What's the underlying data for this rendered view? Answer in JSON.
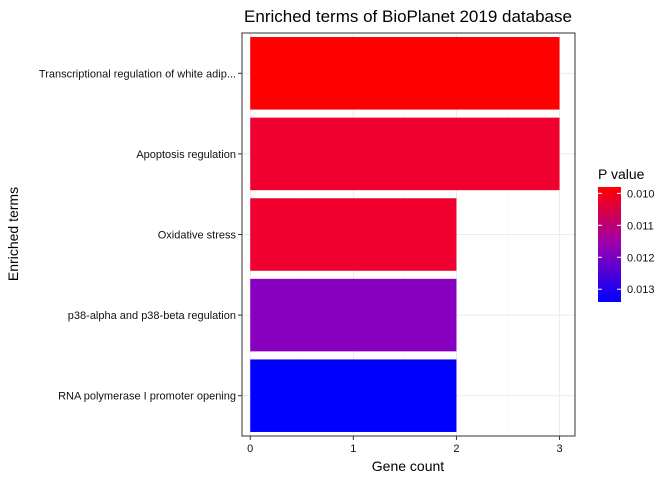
{
  "chart_data": {
    "type": "bar",
    "orientation": "horizontal",
    "title": "Enriched terms of BioPlanet 2019 database",
    "xlabel": "Gene count",
    "ylabel": "Enriched terms",
    "xlim": [
      -0.08,
      3.15
    ],
    "xticks": [
      "0",
      "1",
      "2",
      "3"
    ],
    "grid": true,
    "categories": [
      "Transcriptional regulation of white adip...",
      "Apoptosis regulation",
      "Oxidative stress",
      "p38-alpha and p38-beta regulation",
      "RNA polymerase I promoter opening"
    ],
    "values": [
      3,
      3,
      2,
      2,
      2
    ],
    "p_values": [
      0.0098,
      0.0107,
      0.0107,
      0.0121,
      0.0134
    ],
    "bar_colors": [
      "#FF0000",
      "#F0002E",
      "#F0002E",
      "#8700C0",
      "#0000FF"
    ],
    "legend": {
      "title": "P value",
      "position": "right",
      "labels": [
        "0.010",
        "0.011",
        "0.012",
        "0.013"
      ],
      "label_values": [
        0.01,
        0.011,
        0.012,
        0.013
      ],
      "range": [
        0.0098,
        0.0134
      ],
      "color_low": "#FF0000",
      "color_high": "#0000FF"
    }
  }
}
